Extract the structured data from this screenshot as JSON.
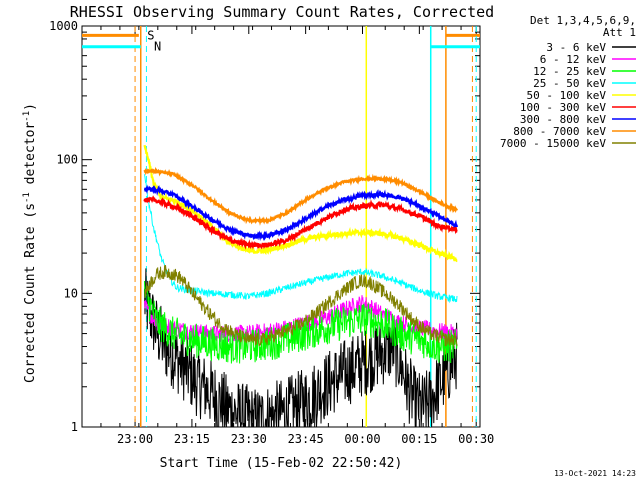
{
  "chart_data": {
    "type": "line",
    "title": "RHESSI Observing Summary Count Rates, Corrected",
    "xlabel": "Start Time (15-Feb-02 22:50:42)",
    "ylabel": "Corrected Count Rate (s",
    "ylabel_sup1": "-1",
    "ylabel_mid": " detector",
    "ylabel_sup2": "-1",
    "ylabel_end": ")",
    "y_scale": "log",
    "ylim": [
      1,
      1000
    ],
    "xlim_minutes": [
      -4,
      101
    ],
    "x_ticks": [
      {
        "label": "23:00",
        "m": 10
      },
      {
        "label": "23:15",
        "m": 25
      },
      {
        "label": "23:30",
        "m": 40
      },
      {
        "label": "23:45",
        "m": 55
      },
      {
        "label": "00:00",
        "m": 70
      },
      {
        "label": "00:15",
        "m": 85
      },
      {
        "label": "00:30",
        "m": 100
      }
    ],
    "y_ticks": [
      {
        "label": "1",
        "v": 1
      },
      {
        "label": "10",
        "v": 10
      },
      {
        "label": "100",
        "v": 100
      },
      {
        "label": "1000",
        "v": 1000
      }
    ],
    "legend_header": [
      "Det 1,3,4,5,6,9,",
      "Att 1"
    ],
    "legend_placement": "right",
    "data_start_m": 12.5,
    "data_end_m": 95,
    "series": [
      {
        "name": "3 - 6 keV",
        "color": "#000000",
        "x": [
          12.5,
          14,
          16,
          18,
          20,
          22,
          24,
          26,
          30,
          34,
          38,
          42,
          46,
          50,
          54,
          58,
          62,
          66,
          70,
          74,
          78,
          80,
          82,
          84,
          86,
          88,
          90,
          92,
          95
        ],
        "y": [
          9,
          7,
          5,
          4,
          3.5,
          3,
          2.6,
          2.2,
          1.8,
          1.4,
          1.2,
          1.1,
          1.2,
          1.3,
          1.5,
          1.8,
          2.2,
          2.6,
          3,
          3.5,
          4,
          3,
          2,
          1.5,
          1.4,
          1.6,
          2,
          2.5,
          3.5
        ],
        "noise": 0.6
      },
      {
        "name": "6 - 12 keV",
        "color": "#ff00ff",
        "x": [
          12.5,
          14,
          16,
          20,
          25,
          30,
          35,
          40,
          45,
          50,
          55,
          60,
          65,
          70,
          72,
          75,
          80,
          85,
          90,
          95
        ],
        "y": [
          8,
          7,
          6,
          5.5,
          5.2,
          5.0,
          5.0,
          5.0,
          5.2,
          5.5,
          6,
          6.5,
          7.5,
          8.5,
          8,
          7,
          6,
          5.5,
          5.2,
          5.0
        ],
        "noise": 0.15
      },
      {
        "name": "12 - 25 keV",
        "color": "#00ff00",
        "x": [
          12.5,
          14,
          16,
          20,
          25,
          30,
          35,
          40,
          45,
          50,
          55,
          60,
          65,
          70,
          75,
          80,
          85,
          90,
          95
        ],
        "y": [
          10,
          8,
          6,
          5,
          4.5,
          4.2,
          4.0,
          4.0,
          4.2,
          4.5,
          5,
          5.5,
          6,
          6.5,
          6,
          5,
          4.5,
          4.0,
          4.0
        ],
        "noise": 0.3
      },
      {
        "name": "25 - 50 keV",
        "color": "#00ffff",
        "x": [
          12.5,
          13.5,
          15,
          17,
          19,
          21,
          25,
          30,
          35,
          40,
          45,
          50,
          55,
          60,
          65,
          70,
          75,
          80,
          85,
          90,
          95
        ],
        "y": [
          80,
          50,
          30,
          18,
          13,
          11,
          10.5,
          10,
          9.8,
          9.5,
          10,
          11,
          12,
          13,
          14,
          14.5,
          13.5,
          12,
          10.5,
          9.5,
          9
        ],
        "noise": 0.06
      },
      {
        "name": "50 - 100 keV",
        "color": "#ffff00",
        "x": [
          12.5,
          13.5,
          15,
          17,
          20,
          25,
          30,
          35,
          40,
          45,
          50,
          55,
          60,
          65,
          70,
          75,
          80,
          85,
          90,
          95
        ],
        "y": [
          125,
          100,
          65,
          52,
          50,
          42,
          32,
          24,
          20.5,
          21,
          23,
          25.5,
          27,
          28,
          28.5,
          28,
          26,
          23,
          20,
          18
        ],
        "noise": 0.04
      },
      {
        "name": "100 - 300 keV",
        "color": "#ff0000",
        "x": [
          12.5,
          15,
          20,
          25,
          30,
          35,
          40,
          45,
          50,
          55,
          60,
          65,
          70,
          75,
          80,
          85,
          90,
          95
        ],
        "y": [
          50,
          50,
          45,
          38,
          30,
          25,
          23,
          23,
          25,
          30,
          36,
          42,
          45,
          46,
          43,
          38,
          32,
          30
        ],
        "noise": 0.04
      },
      {
        "name": "300 - 800 keV",
        "color": "#0000ff",
        "x": [
          12.5,
          15,
          20,
          25,
          30,
          35,
          40,
          45,
          50,
          55,
          60,
          65,
          70,
          75,
          80,
          85,
          90,
          95
        ],
        "y": [
          60,
          60,
          55,
          45,
          36,
          30,
          27,
          27,
          30,
          36,
          44,
          50,
          54,
          55,
          52,
          45,
          38,
          32
        ],
        "noise": 0.03
      },
      {
        "name": "800 - 7000 keV",
        "color": "#ff8c00",
        "x": [
          12.5,
          15,
          20,
          25,
          30,
          35,
          40,
          45,
          50,
          55,
          60,
          65,
          70,
          75,
          80,
          85,
          90,
          95
        ],
        "y": [
          82,
          82,
          78,
          65,
          50,
          40,
          35,
          35,
          40,
          50,
          60,
          68,
          72,
          72,
          68,
          58,
          48,
          42
        ],
        "noise": 0.02
      },
      {
        "name": "7000 - 15000 keV",
        "color": "#808000",
        "x": [
          12.5,
          14,
          16,
          18,
          20,
          22,
          24,
          28,
          32,
          36,
          40,
          44,
          48,
          52,
          56,
          60,
          64,
          68,
          70,
          72,
          74,
          76,
          80,
          84,
          88,
          92,
          95
        ],
        "y": [
          10,
          12,
          14,
          14.5,
          14,
          13,
          11,
          8,
          6,
          5,
          4.5,
          4.5,
          5,
          5.5,
          6.5,
          8,
          10,
          12,
          12.5,
          12,
          11,
          10,
          8,
          6,
          5,
          4.5,
          4.5
        ],
        "noise": 0.12
      }
    ],
    "markers": [
      {
        "label": "S",
        "color": "#ff8c00",
        "line_x_m": [
          9,
          90
        ],
        "bar": [
          [
            -4,
            11
          ],
          [
            92,
            101
          ]
        ],
        "bar_v": 850,
        "dash_x_m": [
          10,
          99
        ]
      },
      {
        "label": "N",
        "color": "#00ffff",
        "line_x_m": [
          -4,
          88
        ],
        "bar": [
          [
            -4,
            11.5
          ],
          [
            88,
            101
          ]
        ],
        "bar_v": 700,
        "dash_x_m": [
          13,
          100
        ]
      }
    ],
    "event_lines": [
      {
        "m": 11.5,
        "color": "#ff8c00"
      },
      {
        "m": 92,
        "color": "#ff8c00"
      },
      {
        "m": 88,
        "color": "#00ffff"
      },
      {
        "m": 71,
        "color": "#ffff00"
      }
    ]
  },
  "timestamp": "13-Oct-2021 14:23"
}
